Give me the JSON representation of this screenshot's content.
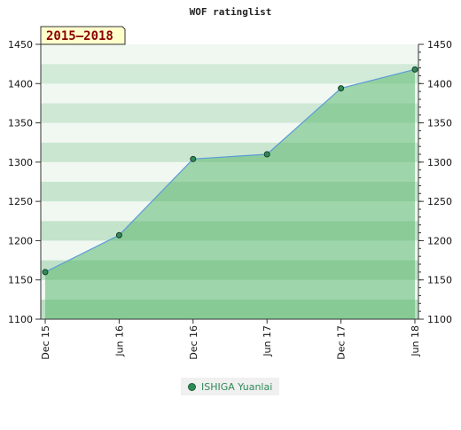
{
  "chart_data": {
    "type": "area",
    "title": "WOF ratinglist",
    "period_label": "2015–2018",
    "categories": [
      "Dec 15",
      "Jun 16",
      "Dec 16",
      "Jun 17",
      "Dec 17",
      "Jun 18"
    ],
    "series": [
      {
        "name": "ISHIGA Yuanlai",
        "values": [
          1160,
          1207,
          1304,
          1310,
          1394,
          1418
        ]
      }
    ],
    "ylim": [
      1100,
      1450
    ],
    "yticks": [
      1100,
      1150,
      1200,
      1250,
      1300,
      1350,
      1400,
      1450
    ],
    "y_axis_both_sides": true,
    "legend_position": "bottom",
    "colors": {
      "line": "#5b9bd5",
      "point": "#2e8b57",
      "area": "#5cb870",
      "band_dark": "#b4dcbe",
      "band_light": "#eef7f0"
    }
  }
}
